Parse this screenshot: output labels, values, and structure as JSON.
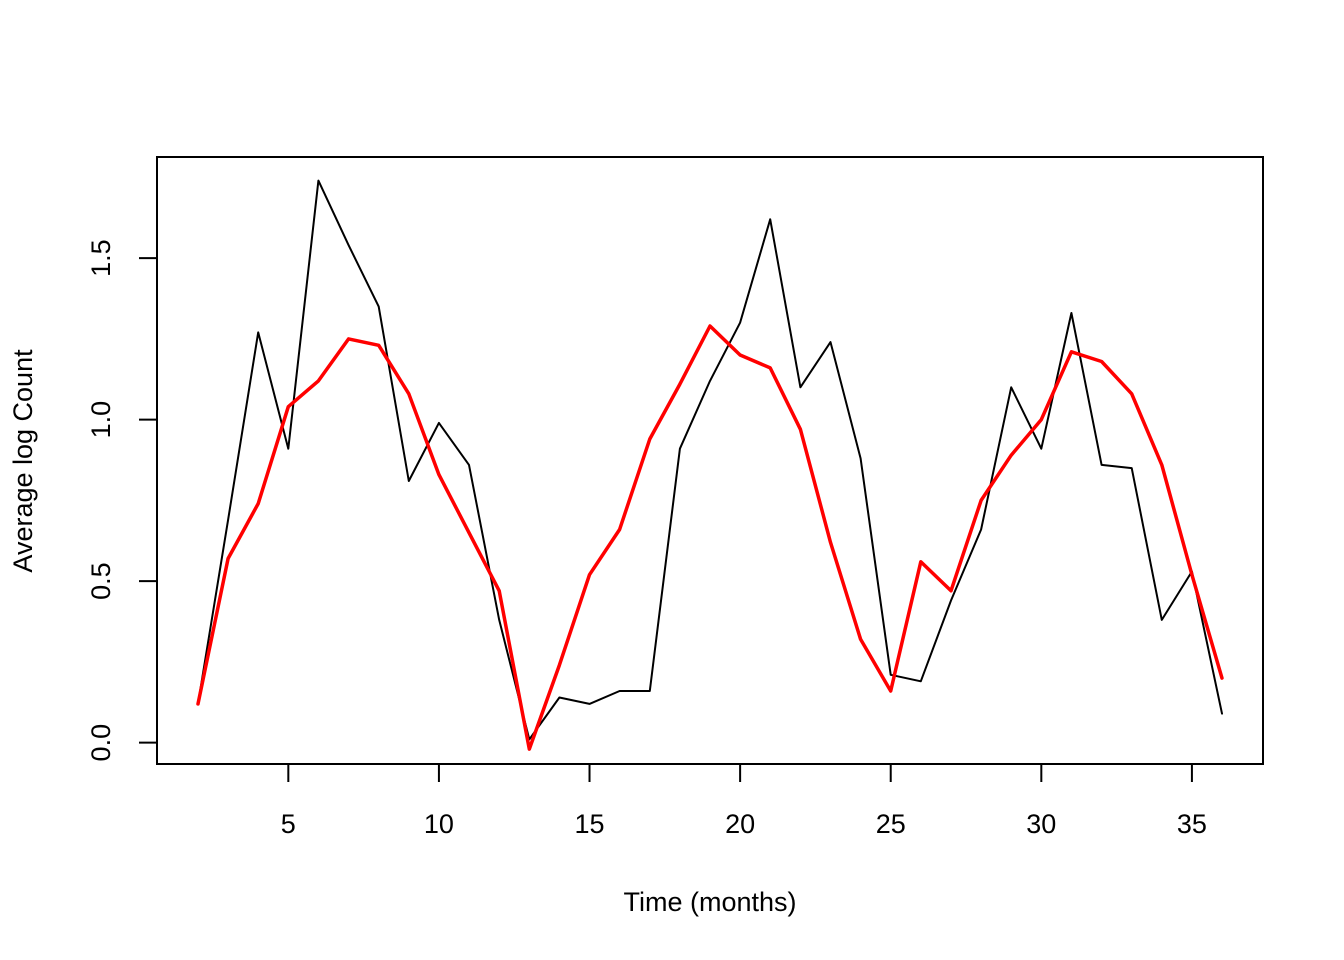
{
  "chart_data": {
    "type": "line",
    "title": "",
    "xlabel": "Time (months)",
    "ylabel": "Average log Count",
    "xlim": [
      0.64,
      37.36
    ],
    "ylim": [
      -0.066,
      1.813
    ],
    "x_ticks": [
      5,
      10,
      15,
      20,
      25,
      30,
      35
    ],
    "x_tick_labels": [
      "5",
      "10",
      "15",
      "20",
      "25",
      "30",
      "35"
    ],
    "y_ticks": [
      0.0,
      0.5,
      1.0,
      1.5
    ],
    "y_tick_labels": [
      "0.0",
      "0.5",
      "1.0",
      "1.5"
    ],
    "grid": false,
    "legend": "none",
    "x": [
      2,
      3,
      4,
      5,
      6,
      7,
      8,
      9,
      10,
      11,
      12,
      13,
      14,
      15,
      16,
      17,
      18,
      19,
      20,
      21,
      22,
      23,
      24,
      25,
      26,
      27,
      28,
      29,
      30,
      31,
      32,
      33,
      34,
      35,
      36
    ],
    "series": [
      {
        "color": "#000000",
        "line_width": 2,
        "values": [
          0.12,
          0.69,
          1.27,
          0.91,
          1.74,
          1.54,
          1.35,
          0.81,
          0.99,
          0.86,
          0.38,
          0.01,
          0.14,
          0.12,
          0.16,
          0.16,
          0.91,
          1.12,
          1.3,
          1.62,
          1.1,
          1.24,
          0.88,
          0.21,
          0.19,
          0.44,
          0.66,
          1.1,
          0.91,
          1.33,
          0.86,
          0.85,
          0.38,
          0.53,
          0.09
        ]
      },
      {
        "color": "#ff0000",
        "line_width": 3.5,
        "values": [
          0.12,
          0.57,
          0.74,
          1.04,
          1.12,
          1.25,
          1.23,
          1.08,
          0.83,
          0.65,
          0.47,
          -0.02,
          0.24,
          0.52,
          0.66,
          0.94,
          1.11,
          1.29,
          1.2,
          1.16,
          0.97,
          0.62,
          0.32,
          0.16,
          0.56,
          0.47,
          0.75,
          0.89,
          1.0,
          1.21,
          1.18,
          1.08,
          0.86,
          0.52,
          0.2
        ]
      }
    ]
  }
}
